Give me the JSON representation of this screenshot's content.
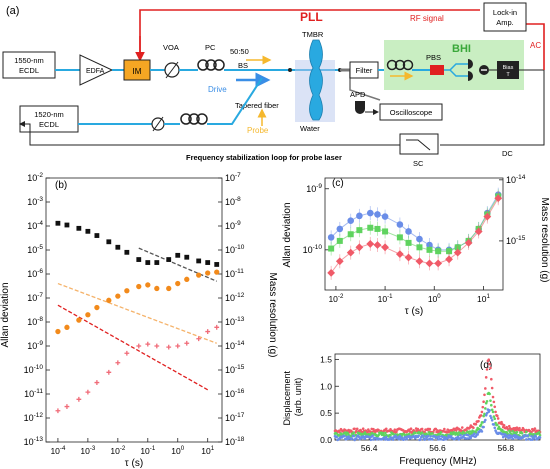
{
  "figure": {
    "panel_labels": {
      "a": "(a)",
      "b": "(b)",
      "c": "(c)",
      "d": "(d)"
    }
  },
  "schematic": {
    "pll_label": "PLL",
    "rf_signal": "RF signal",
    "lockin_line1": "Lock-in",
    "lockin_line2": "Amp.",
    "ac": "AC",
    "dc": "DC",
    "bhi": "BHI",
    "laser1_line1": "1550-nm",
    "laser1_line2": "ECDL",
    "laser2_line1": "1520-nm",
    "laser2_line2": "ECDL",
    "edfa": "EDFA",
    "im": "IM",
    "voa": "VOA",
    "pc": "PC",
    "bs_ratio": "50:50",
    "bs": "BS",
    "tmbr": "TMBR",
    "drive": "Drive",
    "tapered_fiber": "Tapered fiber",
    "probe": "Probe",
    "water": "Water",
    "apd": "APD",
    "oscilloscope": "Oscilloscope",
    "filter": "Filter",
    "pbs": "PBS",
    "bias_line1": "Bias",
    "bias_line2": "T",
    "sc": "SC",
    "stabilization": "Frequency stabilization loop for probe laser",
    "colors": {
      "pll": "#e02020",
      "fiber": "#29a9e0",
      "bhi_box": "#c9eec2",
      "im": "#f5a623",
      "pbs": "#e02020",
      "drive_arrow": "#3a8ee6",
      "probe_arrow": "#f5b82e"
    }
  },
  "chart_data": [
    {
      "panel": "b",
      "type": "scatter",
      "xlabel": "τ (s)",
      "ylabel": "Allan deviation",
      "ylabel_right": "Mass resolution (g)",
      "x_scale": "log",
      "y_scale": "log",
      "xlim": [
        4e-05,
        30
      ],
      "ylim": [
        1e-13,
        0.01
      ],
      "ylim_right": [
        1e-18,
        1e-07
      ],
      "x_ticks": [
        "10^{-4}",
        "10^{-3}",
        "10^{-2}",
        "10^{-1}",
        "10^{0}",
        "10^{1}"
      ],
      "y_ticks": [
        "10^{-2}",
        "10^{-3}",
        "10^{-4}",
        "10^{-5}",
        "10^{-6}",
        "10^{-7}",
        "10^{-8}",
        "10^{-9}",
        "10^{-10}",
        "10^{-11}",
        "10^{-12}",
        "10^{-13}"
      ],
      "y_ticks_right": [
        "10^{-7}",
        "10^{-8}",
        "10^{-9}",
        "10^{-10}",
        "10^{-11}",
        "10^{-12}",
        "10^{-13}",
        "10^{-14}",
        "10^{-15}",
        "10^{-16}",
        "10^{-17}",
        "10^{-18}"
      ],
      "series": [
        {
          "color": "#111111",
          "marker": "square",
          "x": [
            0.0001,
            0.0002,
            0.0005,
            0.001,
            0.002,
            0.005,
            0.01,
            0.02,
            0.05,
            0.1,
            0.2,
            0.5,
            1,
            2,
            5,
            10,
            20
          ],
          "y": [
            0.00013,
            0.00011,
            8e-05,
            6e-05,
            4e-05,
            2.2e-05,
            1.3e-05,
            8e-06,
            4e-06,
            3e-06,
            3e-06,
            4e-06,
            6e-06,
            5e-06,
            3.5e-06,
            3e-06,
            2.5e-06
          ]
        },
        {
          "color": "#f28a1b",
          "marker": "circle",
          "x": [
            0.0001,
            0.0002,
            0.0005,
            0.001,
            0.002,
            0.005,
            0.01,
            0.02,
            0.05,
            0.1,
            0.2,
            0.5,
            1,
            2,
            5,
            10,
            20
          ],
          "y": [
            4e-09,
            6e-09,
            1.2e-08,
            2e-08,
            4e-08,
            8e-08,
            1.2e-07,
            2e-07,
            3e-07,
            3.5e-07,
            2.5e-07,
            2.5e-07,
            4e-07,
            6e-07,
            9e-07,
            1.1e-06,
            1.2e-06
          ]
        },
        {
          "color": "#f06b78",
          "marker": "plus",
          "x": [
            0.0001,
            0.0002,
            0.0005,
            0.001,
            0.002,
            0.005,
            0.01,
            0.02,
            0.05,
            0.1,
            0.2,
            0.5,
            1,
            2,
            5,
            10,
            20
          ],
          "y": [
            2e-12,
            3e-12,
            6e-12,
            1.2e-11,
            3e-11,
            8e-11,
            2e-10,
            5e-10,
            1e-09,
            1.2e-09,
            1e-09,
            9e-10,
            1e-09,
            1.3e-09,
            2e-09,
            4e-09,
            6e-09
          ]
        }
      ],
      "fit_lines": [
        {
          "color": "#555555",
          "x": [
            0.05,
            20
          ],
          "y": [
            1.2e-05,
            5e-07
          ]
        },
        {
          "color": "#f5b36b",
          "x": [
            0.0001,
            20
          ],
          "y": [
            4e-07,
            1.3e-09
          ]
        },
        {
          "color": "#e02020",
          "x": [
            0.0001,
            10
          ],
          "y": [
            5e-08,
            1.5e-11
          ]
        }
      ]
    },
    {
      "panel": "c",
      "type": "scatter",
      "xlabel": "τ (s)",
      "ylabel": "Allan deviation",
      "ylabel_right": "Mass resolution (g)",
      "x_scale": "log",
      "y_scale": "log",
      "xlim": [
        0.006,
        25
      ],
      "ylim": [
        2.2e-11,
        1.5e-09
      ],
      "x_ticks": [
        "10^{-2}",
        "10^{-1}",
        "10^{0}",
        "10^{1}"
      ],
      "y_ticks": [
        "10^{-9}",
        "10^{-10}"
      ],
      "y_ticks_right": [
        "10^{-14}",
        "10^{-15}"
      ],
      "series": [
        {
          "color": "#6a8de8",
          "marker": "circle",
          "x": [
            0.008,
            0.012,
            0.02,
            0.03,
            0.05,
            0.07,
            0.1,
            0.2,
            0.3,
            0.5,
            0.8,
            1.2,
            2,
            3,
            5,
            8,
            12,
            20
          ],
          "y": [
            1.6e-10,
            2.2e-10,
            3e-10,
            3.6e-10,
            4e-10,
            3.8e-10,
            3.5e-10,
            2.6e-10,
            2e-10,
            1.5e-10,
            1.2e-10,
            1e-10,
            1e-10,
            1.1e-10,
            1.4e-10,
            2.2e-10,
            4e-10,
            8e-10
          ]
        },
        {
          "color": "#5fd35f",
          "marker": "square",
          "x": [
            0.008,
            0.012,
            0.02,
            0.03,
            0.05,
            0.07,
            0.1,
            0.2,
            0.3,
            0.5,
            0.8,
            1.2,
            2,
            3,
            5,
            8,
            12,
            20
          ],
          "y": [
            1.05e-10,
            1.4e-10,
            1.8e-10,
            2.1e-10,
            2.3e-10,
            2.2e-10,
            2e-10,
            1.6e-10,
            1.3e-10,
            1.1e-10,
            1e-10,
            9.5e-11,
            9.5e-11,
            1.1e-10,
            1.4e-10,
            2.2e-10,
            3.8e-10,
            7.5e-10
          ]
        },
        {
          "color": "#f05a68",
          "marker": "diamond",
          "x": [
            0.008,
            0.012,
            0.02,
            0.03,
            0.05,
            0.07,
            0.1,
            0.2,
            0.3,
            0.5,
            0.8,
            1.2,
            2,
            3,
            5,
            8,
            12,
            20
          ],
          "y": [
            4.2e-11,
            6.5e-11,
            9e-11,
            1.1e-10,
            1.25e-10,
            1.2e-10,
            1.1e-10,
            8.5e-11,
            7.5e-11,
            6.5e-11,
            6e-11,
            6e-11,
            7e-11,
            9e-11,
            1.3e-10,
            2e-10,
            3.5e-10,
            7e-10
          ]
        }
      ]
    },
    {
      "panel": "d",
      "type": "scatter",
      "xlabel": "Frequency (MHz)",
      "ylabel": "Displacement (arb. unit)",
      "xlim": [
        56.3,
        56.9
      ],
      "ylim": [
        0,
        1.6
      ],
      "x_ticks": [
        "56.4",
        "56.6",
        "56.8"
      ],
      "y_ticks": [
        "0.0",
        "0.5",
        "1.0",
        "1.5"
      ],
      "series": [
        {
          "color": "#f05a68",
          "center": 56.75,
          "peak": 1.5,
          "width": 0.012,
          "floor": 0.17
        },
        {
          "color": "#5fd35f",
          "center": 56.75,
          "peak": 0.85,
          "width": 0.013,
          "floor": 0.1
        },
        {
          "color": "#6a8de8",
          "center": 56.75,
          "peak": 0.55,
          "width": 0.013,
          "floor": 0.04
        }
      ]
    }
  ]
}
